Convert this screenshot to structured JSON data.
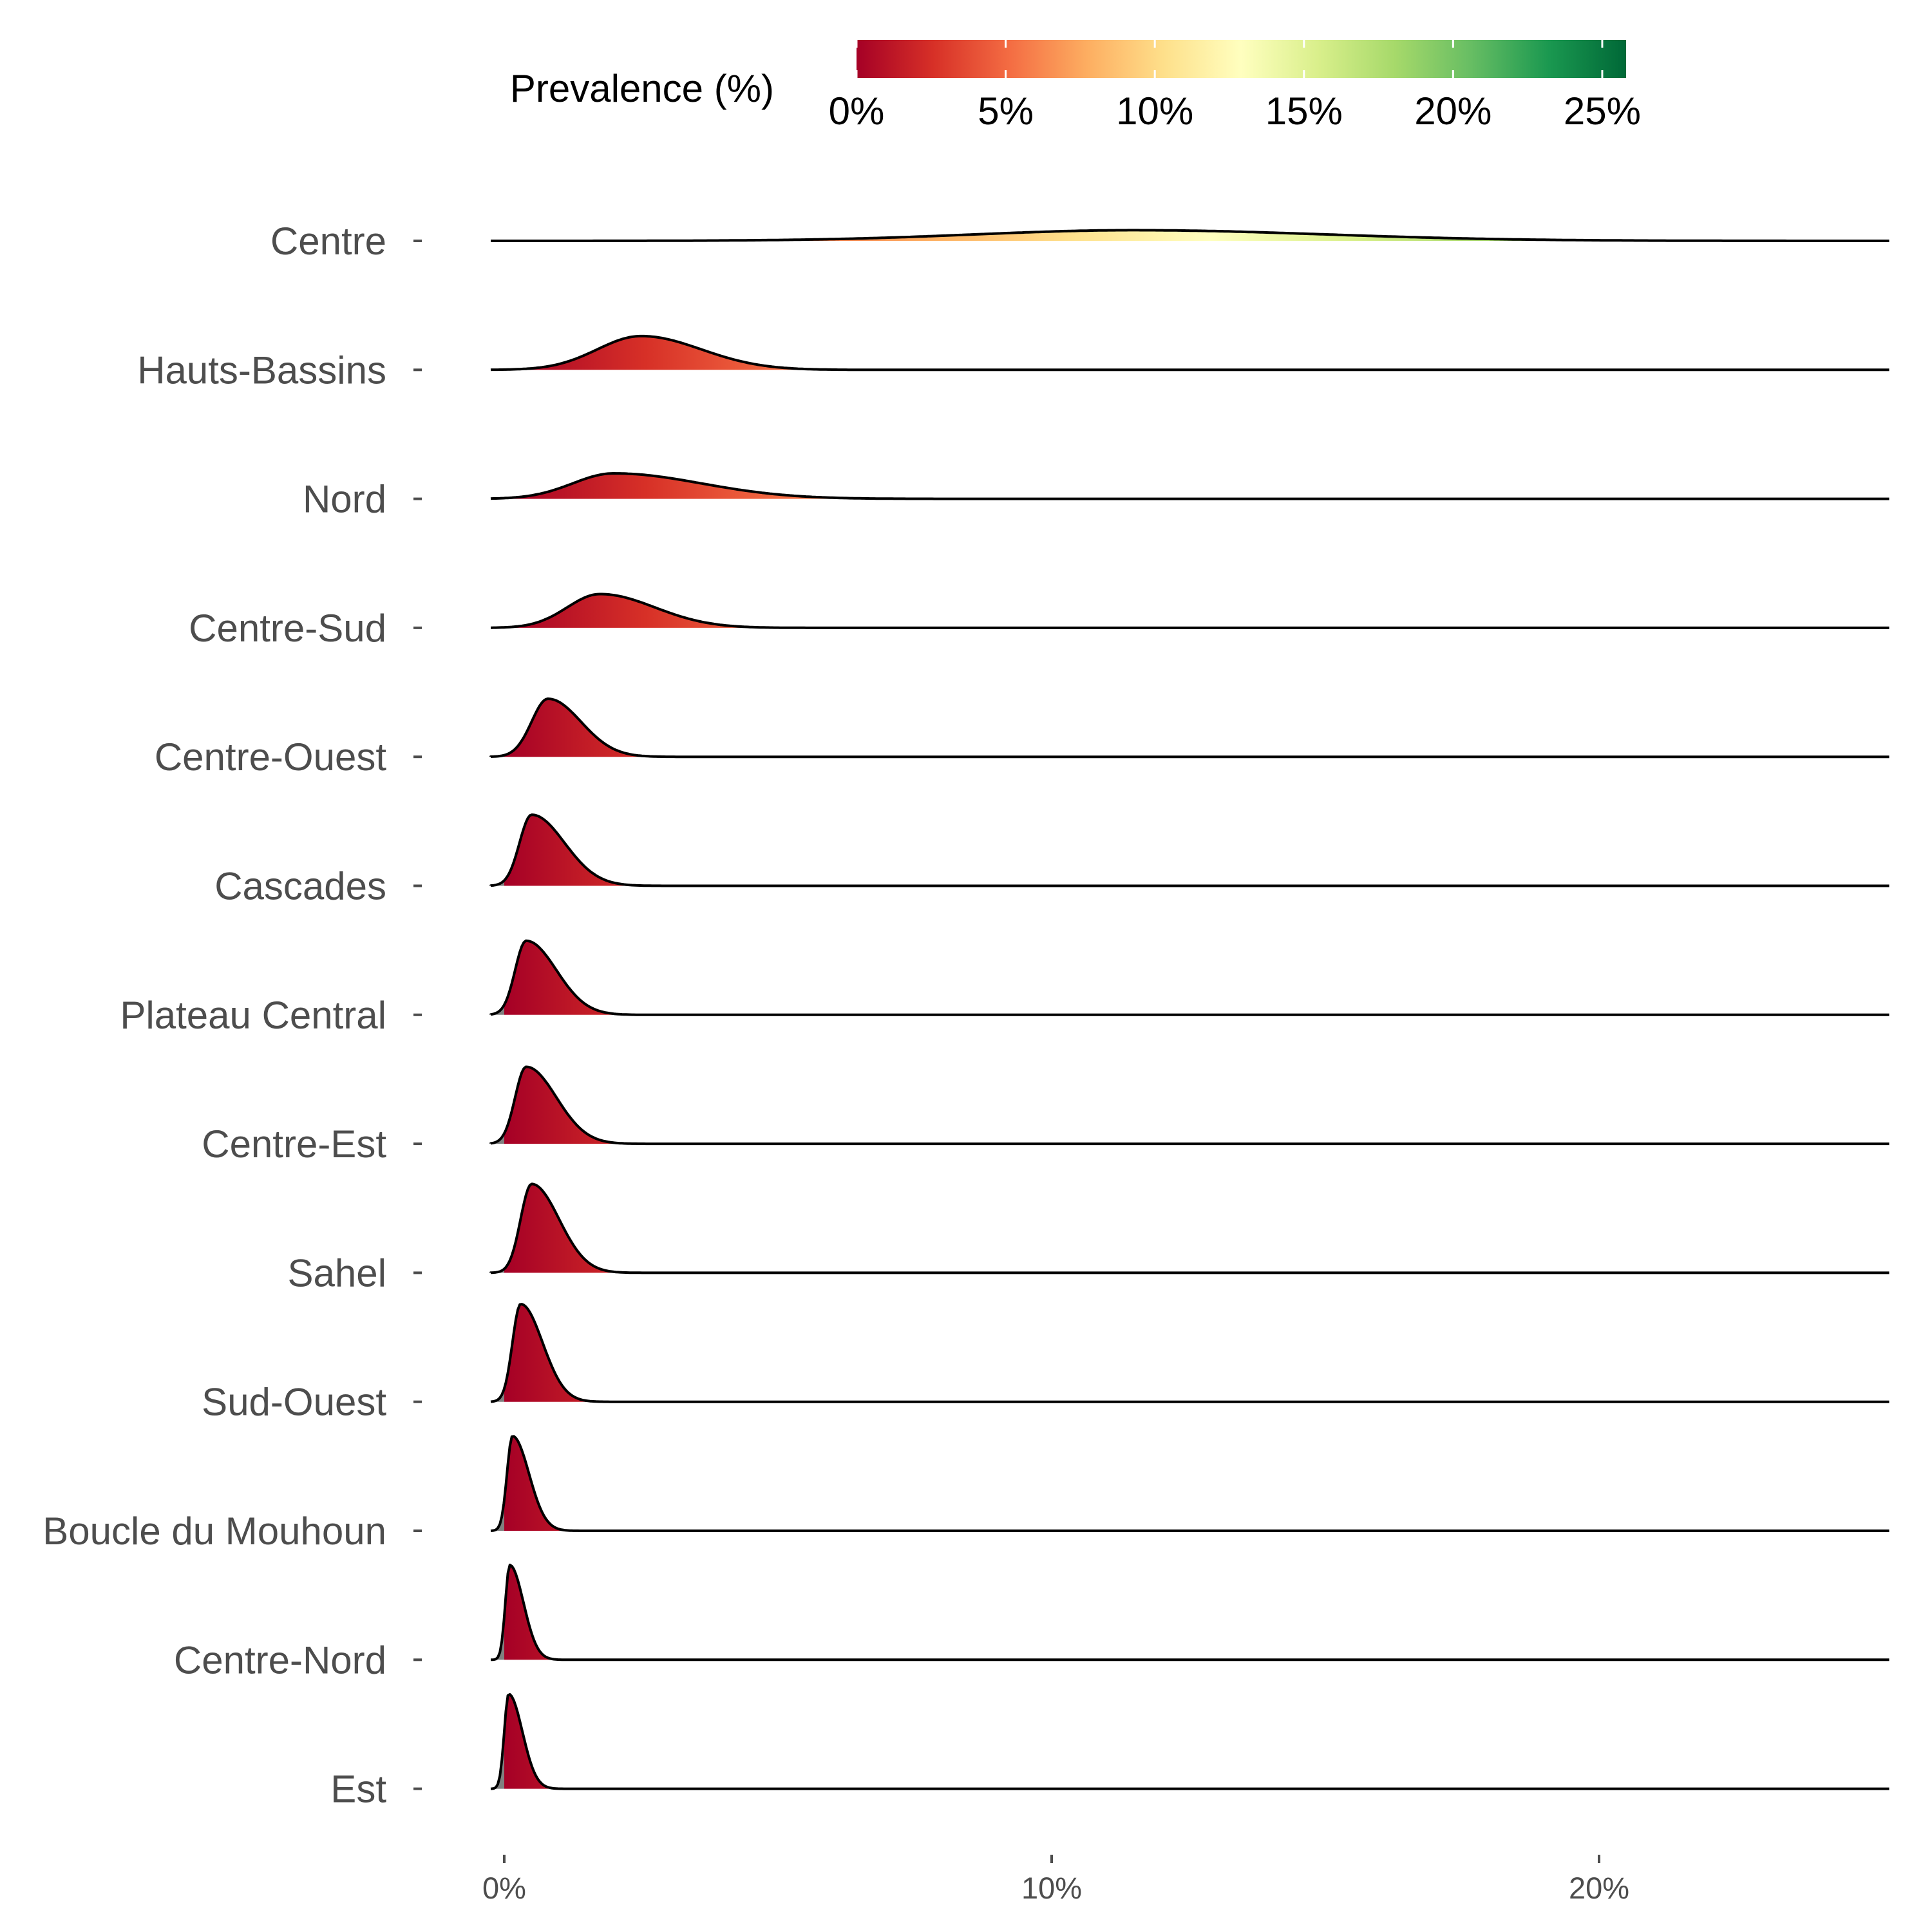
{
  "chart_data": {
    "type": "ridgeline",
    "title": "",
    "xlabel": "",
    "ylabel": "",
    "xlim": [
      -0.3,
      25.3
    ],
    "x_ticks": [
      {
        "value": 0,
        "label": "0%"
      },
      {
        "value": 10,
        "label": "10%"
      },
      {
        "value": 20,
        "label": "20%"
      }
    ],
    "legend": {
      "title": "Prevalence (%)",
      "placement": "top",
      "range": [
        0,
        25.8
      ],
      "ticks": [
        {
          "value": 0,
          "label": "0%"
        },
        {
          "value": 5,
          "label": "5%"
        },
        {
          "value": 10,
          "label": "10%"
        },
        {
          "value": 15,
          "label": "15%"
        },
        {
          "value": 20,
          "label": "20%"
        },
        {
          "value": 25,
          "label": "25%"
        }
      ],
      "colors": [
        "#a50026",
        "#d73027",
        "#f46d43",
        "#fdae61",
        "#fee08b",
        "#ffffbf",
        "#d9ef8b",
        "#a6d96a",
        "#66bd63",
        "#1a9850",
        "#006837"
      ],
      "below_range_color": "#808080"
    },
    "series": [
      {
        "name": "Centre",
        "peaks": [
          {
            "mu": 11.5,
            "sl": 2.9,
            "sr": 3.5,
            "h": 0.18
          }
        ]
      },
      {
        "name": "Hauts-Bassins",
        "peaks": [
          {
            "mu": 2.5,
            "sl": 0.8,
            "sr": 1.1,
            "h": 0.57
          }
        ]
      },
      {
        "name": "Nord",
        "peaks": [
          {
            "mu": 2.0,
            "sl": 0.75,
            "sr": 1.6,
            "h": 0.43
          }
        ]
      },
      {
        "name": "Centre-Sud",
        "peaks": [
          {
            "mu": 1.75,
            "sl": 0.6,
            "sr": 1.0,
            "h": 0.57
          }
        ]
      },
      {
        "name": "Centre-Ouest",
        "peaks": [
          {
            "mu": 0.8,
            "sl": 0.3,
            "sr": 0.6,
            "h": 0.98
          }
        ]
      },
      {
        "name": "Cascades",
        "peaks": [
          {
            "mu": 0.5,
            "sl": 0.22,
            "sr": 0.6,
            "h": 1.2
          }
        ]
      },
      {
        "name": "Plateau Central",
        "peaks": [
          {
            "mu": 0.4,
            "sl": 0.2,
            "sr": 0.55,
            "h": 1.25
          }
        ]
      },
      {
        "name": "Centre-Est",
        "peaks": [
          {
            "mu": 0.4,
            "sl": 0.2,
            "sr": 0.55,
            "h": 1.3
          }
        ]
      },
      {
        "name": "Sahel",
        "peaks": [
          {
            "mu": 0.5,
            "sl": 0.2,
            "sr": 0.5,
            "h": 1.5
          }
        ]
      },
      {
        "name": "Sud-Ouest",
        "peaks": [
          {
            "mu": 0.3,
            "sl": 0.15,
            "sr": 0.4,
            "h": 1.65
          }
        ]
      },
      {
        "name": "Boucle du Mouhoun",
        "peaks": [
          {
            "mu": 0.15,
            "sl": 0.1,
            "sr": 0.3,
            "h": 1.6
          }
        ]
      },
      {
        "name": "Centre-Nord",
        "peaks": [
          {
            "mu": 0.1,
            "sl": 0.08,
            "sr": 0.25,
            "h": 1.6
          }
        ]
      },
      {
        "name": "Est",
        "peaks": [
          {
            "mu": 0.08,
            "sl": 0.08,
            "sr": 0.25,
            "h": 1.6
          }
        ]
      }
    ]
  }
}
